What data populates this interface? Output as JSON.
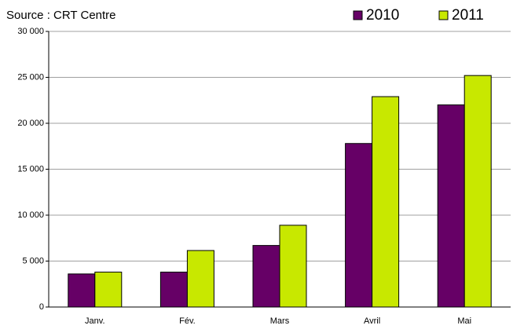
{
  "chart_data": {
    "type": "bar",
    "subtitle": "Source : CRT Centre",
    "categories": [
      "Janv.",
      "Fév.",
      "Mars",
      "Avril",
      "Mai"
    ],
    "series": [
      {
        "name": "2010",
        "color": "#660066",
        "values": [
          3600,
          3800,
          6700,
          17800,
          22000
        ]
      },
      {
        "name": "2011",
        "color": "#c8e800",
        "values": [
          3800,
          6150,
          8900,
          22900,
          25200
        ]
      }
    ],
    "ylim": [
      0,
      30000
    ],
    "yticks": [
      0,
      {
        "value": 5000,
        "label": "5 000"
      },
      {
        "value": 10000,
        "label": "10 000"
      },
      {
        "value": 15000,
        "label": "15 000"
      },
      {
        "value": 20000,
        "label": "20 000"
      },
      {
        "value": 25000,
        "label": "25 000"
      },
      {
        "value": 30000,
        "label": "30 000"
      }
    ],
    "grid": true,
    "legend": "top-right"
  }
}
